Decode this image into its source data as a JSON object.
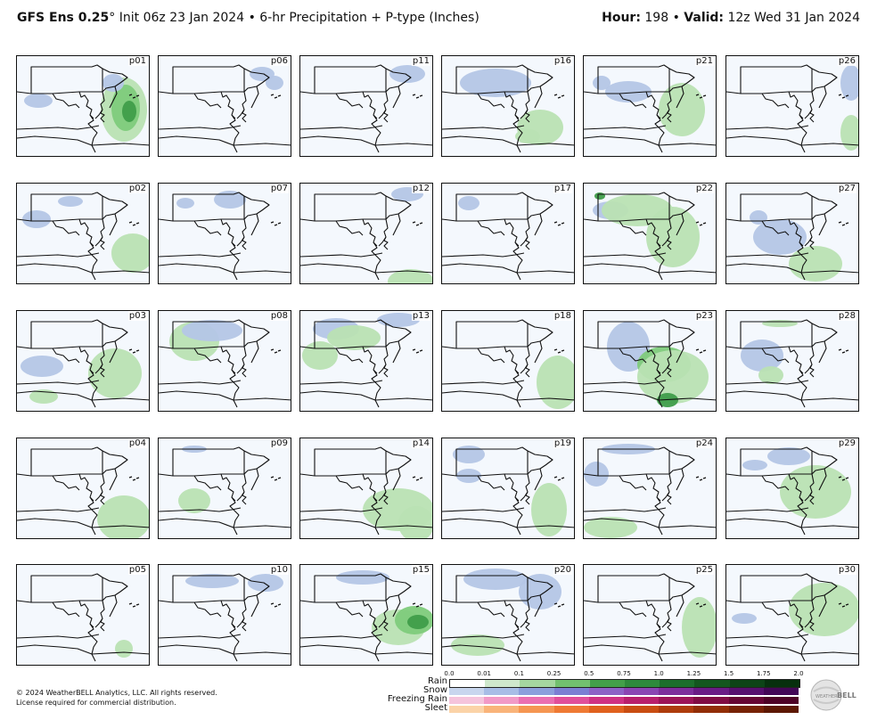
{
  "header": {
    "model": "GFS Ens 0.25",
    "degree": "°",
    "init": "Init 06z 23 Jan 2024",
    "bullet": "•",
    "product": "6-hr Precipitation + P-type (Inches)",
    "hour_label": "Hour:",
    "hour_value": "198",
    "valid_label": "Valid:",
    "valid_value": "12z Wed 31 Jan 2024"
  },
  "members": [
    [
      "p01",
      "p06",
      "p11",
      "p16",
      "p21",
      "p26"
    ],
    [
      "p02",
      "p07",
      "p12",
      "p17",
      "p22",
      "p27"
    ],
    [
      "p03",
      "p08",
      "p13",
      "p18",
      "p23",
      "p28"
    ],
    [
      "p04",
      "p09",
      "p14",
      "p19",
      "p24",
      "p29"
    ],
    [
      "p05",
      "p10",
      "p15",
      "p20",
      "p25",
      "p30"
    ]
  ],
  "legend": {
    "ticks": [
      "0.0",
      "0.01",
      "0.1",
      "0.25",
      "0.5",
      "0.75",
      "1.0",
      "1.25",
      "1.5",
      "1.75",
      "2.0"
    ],
    "ptypes": [
      "Rain",
      "Snow",
      "Freezing Rain",
      "Sleet"
    ],
    "colors": {
      "Rain": [
        "#ffffff",
        "#cfe8cc",
        "#a5d7a0",
        "#72c06f",
        "#43a04a",
        "#2e8a3c",
        "#1c6e2c",
        "#14571f",
        "#0d4417",
        "#07300e"
      ],
      "Snow": [
        "#c8d6ee",
        "#a7bde6",
        "#8b9fdc",
        "#7b7fd3",
        "#8d62c6",
        "#8a46b3",
        "#7d2e9c",
        "#6a1c86",
        "#57106f",
        "#430757"
      ],
      "Freezing Rain": [
        "#f5c4dc",
        "#f19ac7",
        "#ea6fb1",
        "#e04f9a",
        "#cf3183",
        "#b81f6c",
        "#9c1458",
        "#800c44",
        "#660634",
        "#4d0226"
      ],
      "Sleet": [
        "#fbd3a8",
        "#f9b47a",
        "#f59652",
        "#ef7a34",
        "#e0611e",
        "#c94d12",
        "#ae3c0c",
        "#922e07",
        "#772205",
        "#5c1803"
      ]
    }
  },
  "footer": {
    "copyright": "© 2024 WeatherBELL Analytics, LLC. All rights reserved.",
    "license": "License required for commercial distribution."
  },
  "logo": {
    "text": "BELL",
    "prefix": "WEATHER"
  },
  "map_colors": {
    "rain_light": "#b9e2b3",
    "rain_mid": "#7ecb7b",
    "rain_dark": "#3f9d4a",
    "snow_light": "#b4c6e6",
    "snow_mid": "#95acd8",
    "background": "#f4f8fd"
  }
}
